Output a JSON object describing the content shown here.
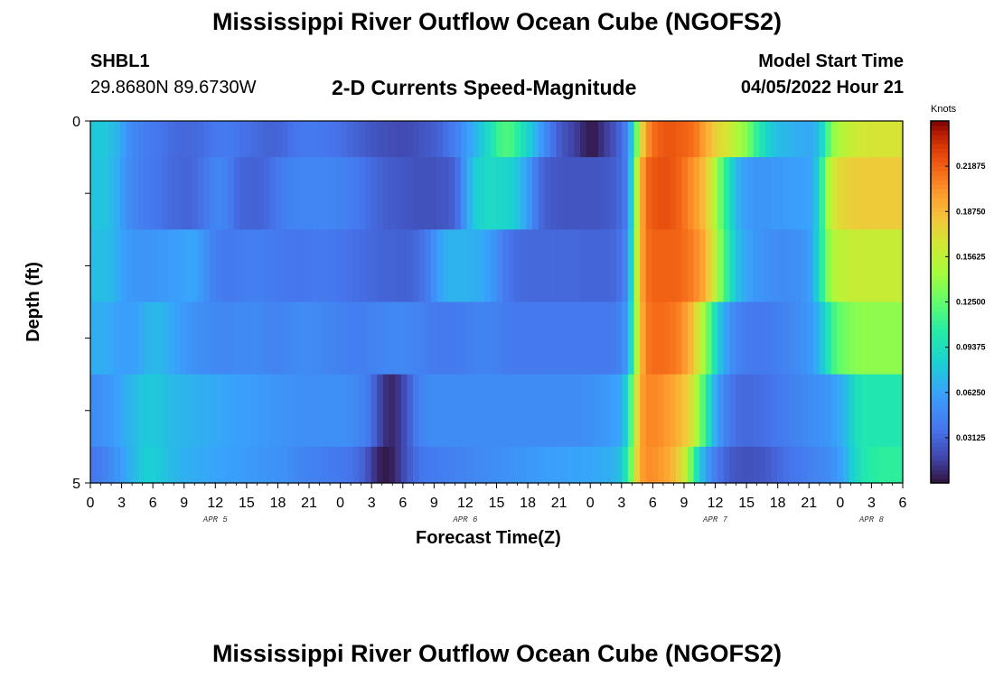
{
  "header": {
    "title": "Mississippi River Outflow Ocean Cube (NGOFS2)",
    "station_id": "SHBL1",
    "station_coords": "29.8680N  89.6730W",
    "subtitle": "2-D Currents Speed-Magnitude",
    "model_start_label": "Model Start Time",
    "model_start_value": "04/05/2022 Hour 21"
  },
  "footer": {
    "title_repeat": "Mississippi River Outflow Ocean Cube (NGOFS2)"
  },
  "chart_data": {
    "type": "heatmap",
    "title": "2-D Currents Speed-Magnitude",
    "xlabel": "Forecast Time(Z)",
    "ylabel": "Depth (ft)",
    "x_tick_labels": [
      "0",
      "3",
      "6",
      "9",
      "12",
      "15",
      "18",
      "21",
      "0",
      "3",
      "6",
      "9",
      "12",
      "15",
      "18",
      "21",
      "0",
      "3",
      "6",
      "9",
      "12",
      "15",
      "18",
      "21",
      "0",
      "3",
      "6"
    ],
    "date_labels": [
      {
        "label": "APR 5",
        "tick_index": 4
      },
      {
        "label": "APR 6",
        "tick_index": 12
      },
      {
        "label": "APR 7",
        "tick_index": 20
      },
      {
        "label": "APR 8",
        "tick_index": 25
      }
    ],
    "y_tick_labels": [
      "0",
      "5"
    ],
    "ylim": [
      0,
      5
    ],
    "colorbar": {
      "unit": "Knots",
      "range": [
        0,
        0.25
      ],
      "tick_labels": [
        "0.03125",
        "0.06250",
        "0.09375",
        "0.12500",
        "0.15625",
        "0.18750",
        "0.21875"
      ],
      "colormap": "turbo"
    },
    "depth_layers": 5,
    "row_heights_relative": [
      1,
      2,
      2,
      2,
      2,
      1
    ],
    "grid": false,
    "rows": [
      [
        0.08,
        0.08,
        0.08,
        0.075,
        0.07,
        0.06,
        0.052,
        0.047,
        0.044,
        0.042,
        0.04,
        0.038,
        0.036,
        0.034,
        0.033,
        0.032,
        0.032,
        0.033,
        0.034,
        0.036,
        0.038,
        0.04,
        0.041,
        0.04,
        0.038,
        0.036,
        0.035,
        0.034,
        0.032,
        0.03,
        0.03,
        0.031,
        0.033,
        0.036,
        0.038,
        0.039,
        0.04,
        0.04,
        0.039,
        0.038,
        0.037,
        0.036,
        0.034,
        0.032,
        0.03,
        0.028,
        0.026,
        0.024,
        0.023,
        0.022,
        0.021,
        0.02,
        0.02,
        0.021,
        0.022,
        0.024,
        0.026,
        0.028,
        0.031,
        0.035,
        0.04,
        0.046,
        0.054,
        0.063,
        0.072,
        0.08,
        0.09,
        0.102,
        0.114,
        0.118,
        0.115,
        0.106,
        0.094,
        0.082,
        0.07,
        0.058,
        0.046,
        0.036,
        0.028,
        0.022,
        0.018,
        0.014,
        0.008,
        0.004,
        0.004,
        0.01,
        0.016,
        0.022,
        0.03,
        0.042,
        0.075,
        0.13,
        0.18,
        0.205,
        0.216,
        0.22,
        0.222,
        0.222,
        0.22,
        0.218,
        0.215,
        0.21,
        0.2,
        0.19,
        0.18,
        0.172,
        0.166,
        0.158,
        0.148,
        0.138,
        0.125,
        0.11,
        0.096,
        0.085,
        0.078,
        0.074,
        0.072,
        0.07,
        0.068,
        0.066,
        0.066,
        0.072,
        0.09,
        0.118,
        0.14,
        0.15,
        0.155,
        0.16,
        0.163,
        0.165,
        0.166,
        0.167,
        0.167,
        0.167,
        0.167,
        0.167
      ],
      [
        0.078,
        0.078,
        0.078,
        0.073,
        0.067,
        0.058,
        0.05,
        0.046,
        0.043,
        0.041,
        0.039,
        0.037,
        0.035,
        0.033,
        0.032,
        0.031,
        0.031,
        0.033,
        0.036,
        0.04,
        0.045,
        0.047,
        0.045,
        0.04,
        0.034,
        0.031,
        0.03,
        0.03,
        0.031,
        0.033,
        0.036,
        0.04,
        0.043,
        0.045,
        0.046,
        0.047,
        0.047,
        0.047,
        0.047,
        0.047,
        0.046,
        0.045,
        0.044,
        0.042,
        0.04,
        0.038,
        0.035,
        0.032,
        0.03,
        0.028,
        0.027,
        0.026,
        0.025,
        0.024,
        0.023,
        0.023,
        0.023,
        0.023,
        0.024,
        0.025,
        0.028,
        0.036,
        0.052,
        0.07,
        0.082,
        0.088,
        0.09,
        0.09,
        0.089,
        0.087,
        0.084,
        0.078,
        0.068,
        0.055,
        0.042,
        0.032,
        0.028,
        0.026,
        0.025,
        0.024,
        0.024,
        0.024,
        0.024,
        0.024,
        0.024,
        0.025,
        0.026,
        0.028,
        0.032,
        0.04,
        0.08,
        0.15,
        0.2,
        0.218,
        0.222,
        0.224,
        0.224,
        0.222,
        0.218,
        0.212,
        0.205,
        0.198,
        0.188,
        0.172,
        0.152,
        0.128,
        0.105,
        0.085,
        0.07,
        0.062,
        0.058,
        0.056,
        0.056,
        0.056,
        0.057,
        0.058,
        0.059,
        0.06,
        0.061,
        0.062,
        0.064,
        0.078,
        0.11,
        0.145,
        0.165,
        0.172,
        0.176,
        0.178,
        0.18,
        0.18,
        0.18,
        0.18,
        0.18,
        0.18,
        0.18,
        0.18
      ],
      [
        0.075,
        0.075,
        0.075,
        0.072,
        0.068,
        0.062,
        0.058,
        0.056,
        0.055,
        0.055,
        0.056,
        0.057,
        0.058,
        0.059,
        0.06,
        0.062,
        0.064,
        0.063,
        0.058,
        0.052,
        0.046,
        0.042,
        0.04,
        0.04,
        0.041,
        0.042,
        0.043,
        0.043,
        0.043,
        0.042,
        0.041,
        0.04,
        0.039,
        0.038,
        0.038,
        0.038,
        0.039,
        0.04,
        0.04,
        0.04,
        0.039,
        0.038,
        0.037,
        0.036,
        0.035,
        0.034,
        0.033,
        0.032,
        0.031,
        0.03,
        0.03,
        0.029,
        0.029,
        0.03,
        0.032,
        0.036,
        0.042,
        0.052,
        0.062,
        0.068,
        0.07,
        0.07,
        0.07,
        0.069,
        0.068,
        0.066,
        0.062,
        0.056,
        0.048,
        0.04,
        0.036,
        0.034,
        0.033,
        0.032,
        0.032,
        0.032,
        0.032,
        0.032,
        0.032,
        0.032,
        0.032,
        0.032,
        0.031,
        0.031,
        0.031,
        0.031,
        0.031,
        0.032,
        0.036,
        0.046,
        0.085,
        0.155,
        0.2,
        0.215,
        0.218,
        0.218,
        0.218,
        0.218,
        0.217,
        0.214,
        0.21,
        0.204,
        0.196,
        0.18,
        0.16,
        0.135,
        0.11,
        0.09,
        0.075,
        0.066,
        0.06,
        0.056,
        0.054,
        0.052,
        0.051,
        0.05,
        0.05,
        0.051,
        0.052,
        0.055,
        0.062,
        0.08,
        0.108,
        0.135,
        0.15,
        0.155,
        0.158,
        0.16,
        0.16,
        0.16,
        0.16,
        0.16,
        0.16,
        0.16,
        0.16,
        0.16
      ],
      [
        0.068,
        0.068,
        0.068,
        0.065,
        0.062,
        0.06,
        0.06,
        0.062,
        0.066,
        0.07,
        0.072,
        0.072,
        0.07,
        0.066,
        0.062,
        0.058,
        0.055,
        0.053,
        0.051,
        0.05,
        0.049,
        0.048,
        0.048,
        0.048,
        0.049,
        0.049,
        0.049,
        0.049,
        0.048,
        0.047,
        0.046,
        0.046,
        0.047,
        0.048,
        0.049,
        0.05,
        0.05,
        0.049,
        0.048,
        0.047,
        0.046,
        0.045,
        0.044,
        0.043,
        0.043,
        0.043,
        0.044,
        0.045,
        0.046,
        0.047,
        0.048,
        0.048,
        0.048,
        0.047,
        0.046,
        0.044,
        0.042,
        0.041,
        0.04,
        0.04,
        0.04,
        0.041,
        0.042,
        0.043,
        0.044,
        0.045,
        0.045,
        0.044,
        0.043,
        0.042,
        0.041,
        0.04,
        0.04,
        0.04,
        0.04,
        0.04,
        0.04,
        0.04,
        0.04,
        0.04,
        0.04,
        0.04,
        0.04,
        0.04,
        0.04,
        0.04,
        0.04,
        0.041,
        0.045,
        0.055,
        0.09,
        0.15,
        0.195,
        0.212,
        0.215,
        0.215,
        0.214,
        0.212,
        0.208,
        0.2,
        0.188,
        0.172,
        0.15,
        0.124,
        0.098,
        0.076,
        0.06,
        0.05,
        0.045,
        0.042,
        0.04,
        0.04,
        0.04,
        0.041,
        0.042,
        0.044,
        0.046,
        0.048,
        0.05,
        0.053,
        0.058,
        0.066,
        0.08,
        0.098,
        0.115,
        0.125,
        0.13,
        0.134,
        0.137,
        0.138,
        0.138,
        0.138,
        0.138,
        0.138,
        0.138,
        0.138
      ],
      [
        0.05,
        0.052,
        0.055,
        0.058,
        0.062,
        0.066,
        0.07,
        0.074,
        0.078,
        0.08,
        0.08,
        0.078,
        0.076,
        0.074,
        0.072,
        0.071,
        0.07,
        0.069,
        0.068,
        0.067,
        0.066,
        0.065,
        0.064,
        0.063,
        0.062,
        0.061,
        0.06,
        0.059,
        0.058,
        0.057,
        0.056,
        0.055,
        0.054,
        0.053,
        0.052,
        0.052,
        0.052,
        0.052,
        0.052,
        0.052,
        0.052,
        0.052,
        0.052,
        0.05,
        0.048,
        0.045,
        0.04,
        0.03,
        0.018,
        0.01,
        0.008,
        0.012,
        0.02,
        0.03,
        0.04,
        0.046,
        0.049,
        0.05,
        0.05,
        0.05,
        0.05,
        0.05,
        0.05,
        0.05,
        0.05,
        0.05,
        0.05,
        0.05,
        0.05,
        0.05,
        0.05,
        0.05,
        0.05,
        0.05,
        0.05,
        0.05,
        0.05,
        0.05,
        0.05,
        0.05,
        0.05,
        0.05,
        0.051,
        0.052,
        0.054,
        0.056,
        0.058,
        0.06,
        0.064,
        0.08,
        0.12,
        0.17,
        0.2,
        0.206,
        0.206,
        0.204,
        0.2,
        0.196,
        0.19,
        0.182,
        0.17,
        0.15,
        0.122,
        0.094,
        0.07,
        0.054,
        0.044,
        0.038,
        0.034,
        0.033,
        0.033,
        0.034,
        0.035,
        0.036,
        0.038,
        0.04,
        0.042,
        0.044,
        0.046,
        0.048,
        0.05,
        0.052,
        0.054,
        0.056,
        0.06,
        0.066,
        0.075,
        0.085,
        0.095,
        0.1,
        0.1,
        0.1,
        0.1,
        0.1,
        0.1,
        0.1
      ],
      [
        0.04,
        0.042,
        0.045,
        0.05,
        0.056,
        0.062,
        0.068,
        0.074,
        0.08,
        0.083,
        0.082,
        0.08,
        0.077,
        0.074,
        0.071,
        0.069,
        0.068,
        0.067,
        0.066,
        0.065,
        0.064,
        0.063,
        0.062,
        0.061,
        0.06,
        0.059,
        0.058,
        0.057,
        0.056,
        0.055,
        0.054,
        0.053,
        0.052,
        0.05,
        0.048,
        0.046,
        0.045,
        0.044,
        0.043,
        0.042,
        0.041,
        0.04,
        0.039,
        0.037,
        0.034,
        0.03,
        0.022,
        0.012,
        0.005,
        0.003,
        0.005,
        0.012,
        0.02,
        0.028,
        0.034,
        0.038,
        0.04,
        0.041,
        0.042,
        0.043,
        0.044,
        0.045,
        0.046,
        0.047,
        0.048,
        0.049,
        0.05,
        0.051,
        0.052,
        0.053,
        0.054,
        0.055,
        0.056,
        0.057,
        0.058,
        0.059,
        0.06,
        0.061,
        0.062,
        0.062,
        0.063,
        0.063,
        0.064,
        0.064,
        0.065,
        0.066,
        0.068,
        0.07,
        0.076,
        0.095,
        0.13,
        0.175,
        0.2,
        0.204,
        0.203,
        0.2,
        0.195,
        0.188,
        0.178,
        0.16,
        0.13,
        0.098,
        0.072,
        0.055,
        0.044,
        0.036,
        0.03,
        0.026,
        0.024,
        0.023,
        0.023,
        0.024,
        0.025,
        0.027,
        0.03,
        0.033,
        0.036,
        0.038,
        0.04,
        0.042,
        0.044,
        0.046,
        0.048,
        0.05,
        0.054,
        0.06,
        0.07,
        0.082,
        0.092,
        0.1,
        0.104,
        0.106,
        0.108,
        0.108,
        0.108,
        0.108
      ]
    ]
  }
}
